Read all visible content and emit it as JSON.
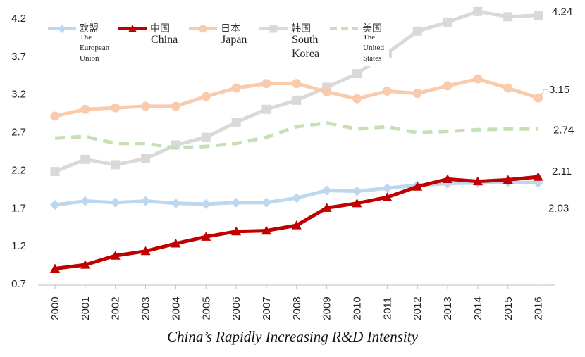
{
  "chart_data": {
    "type": "line",
    "title": "China’s Rapidly Increasing R&D Intensity",
    "xlabel": "",
    "ylabel": "",
    "ylim": [
      0.7,
      4.2
    ],
    "yticks": [
      "0.7",
      "1.2",
      "1.7",
      "2.2",
      "2.7",
      "3.2",
      "3.7",
      "4.2"
    ],
    "grid": false,
    "legend_position": "top",
    "categories": [
      "2000",
      "2001",
      "2002",
      "2003",
      "2004",
      "2005",
      "2006",
      "2007",
      "2008",
      "2009",
      "2010",
      "2011",
      "2012",
      "2013",
      "2014",
      "2015",
      "2016"
    ],
    "series": [
      {
        "key": "eu",
        "name": "The European Union",
        "name_cn": "欧盟",
        "name_lines": [
          "The",
          "European",
          "Union"
        ],
        "color": "#BDD7EE",
        "marker": "diamond",
        "style": "solid",
        "values": [
          1.74,
          1.79,
          1.77,
          1.79,
          1.76,
          1.75,
          1.77,
          1.77,
          1.83,
          1.93,
          1.92,
          1.96,
          2.0,
          2.02,
          2.03,
          2.04,
          2.03
        ],
        "end_label": "2.03"
      },
      {
        "key": "china",
        "name": "China",
        "name_cn": "中国",
        "name_lines": [
          "China"
        ],
        "color": "#C00000",
        "marker": "triangle",
        "style": "solid",
        "values": [
          0.9,
          0.95,
          1.07,
          1.13,
          1.23,
          1.32,
          1.39,
          1.4,
          1.47,
          1.7,
          1.76,
          1.84,
          1.98,
          2.08,
          2.05,
          2.07,
          2.11
        ],
        "end_label": "2.11"
      },
      {
        "key": "japan",
        "name": "Japan",
        "name_cn": "日本",
        "name_lines": [
          "Japan"
        ],
        "color": "#F8CBAD",
        "marker": "circle",
        "style": "solid",
        "values": [
          2.91,
          3.0,
          3.02,
          3.04,
          3.04,
          3.17,
          3.28,
          3.34,
          3.34,
          3.23,
          3.14,
          3.24,
          3.21,
          3.31,
          3.4,
          3.28,
          3.15
        ],
        "end_label": "3.15"
      },
      {
        "key": "korea",
        "name": "South Korea",
        "name_cn": "韩国",
        "name_lines": [
          "South",
          "Korea"
        ],
        "color": "#D9D9D9",
        "marker": "square",
        "style": "solid",
        "values": [
          2.18,
          2.34,
          2.27,
          2.35,
          2.53,
          2.63,
          2.83,
          3.0,
          3.12,
          3.29,
          3.47,
          3.74,
          4.03,
          4.15,
          4.29,
          4.22,
          4.24
        ],
        "end_label": "4.24"
      },
      {
        "key": "us",
        "name": "The United States",
        "name_cn": "美国",
        "name_lines": [
          "The",
          "United",
          "States"
        ],
        "color": "#C5E0B4",
        "marker": "none",
        "style": "dashed",
        "values": [
          2.62,
          2.64,
          2.55,
          2.55,
          2.49,
          2.51,
          2.55,
          2.63,
          2.77,
          2.82,
          2.74,
          2.77,
          2.69,
          2.71,
          2.73,
          2.74,
          2.74
        ],
        "end_label": "2.74"
      }
    ]
  }
}
